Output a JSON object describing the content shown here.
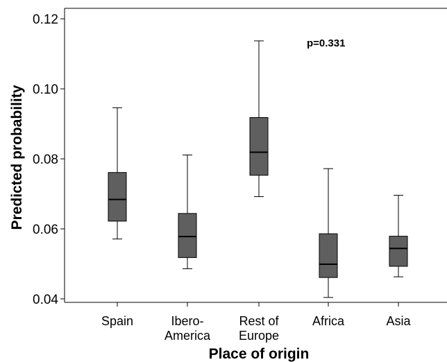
{
  "chart_data": {
    "type": "box",
    "xlabel": "Place of origin",
    "ylabel": "Predicted probability",
    "ylim": [
      0.039,
      0.123
    ],
    "yticks": [
      0.04,
      0.06,
      0.08,
      0.1,
      0.12
    ],
    "ytick_labels": [
      "0.04",
      "0.06",
      "0.08",
      "0.10",
      "0.12"
    ],
    "annotation": "p=0.331",
    "categories": [
      {
        "label_lines": [
          "Spain"
        ],
        "min": 0.0571,
        "q1": 0.0622,
        "median": 0.0684,
        "q3": 0.0761,
        "max": 0.0946
      },
      {
        "label_lines": [
          "Ibero-",
          "America"
        ],
        "min": 0.0486,
        "q1": 0.0518,
        "median": 0.0578,
        "q3": 0.0644,
        "max": 0.0811
      },
      {
        "label_lines": [
          "Rest of",
          "Europe"
        ],
        "min": 0.0692,
        "q1": 0.0753,
        "median": 0.0819,
        "q3": 0.0918,
        "max": 0.1137
      },
      {
        "label_lines": [
          "Africa"
        ],
        "min": 0.0404,
        "q1": 0.0461,
        "median": 0.0499,
        "q3": 0.0586,
        "max": 0.0772
      },
      {
        "label_lines": [
          "Asia"
        ],
        "min": 0.0463,
        "q1": 0.0493,
        "median": 0.0544,
        "q3": 0.0579,
        "max": 0.0696
      }
    ],
    "box_color": "#5f5f5f",
    "grid": false,
    "legend": "none"
  }
}
